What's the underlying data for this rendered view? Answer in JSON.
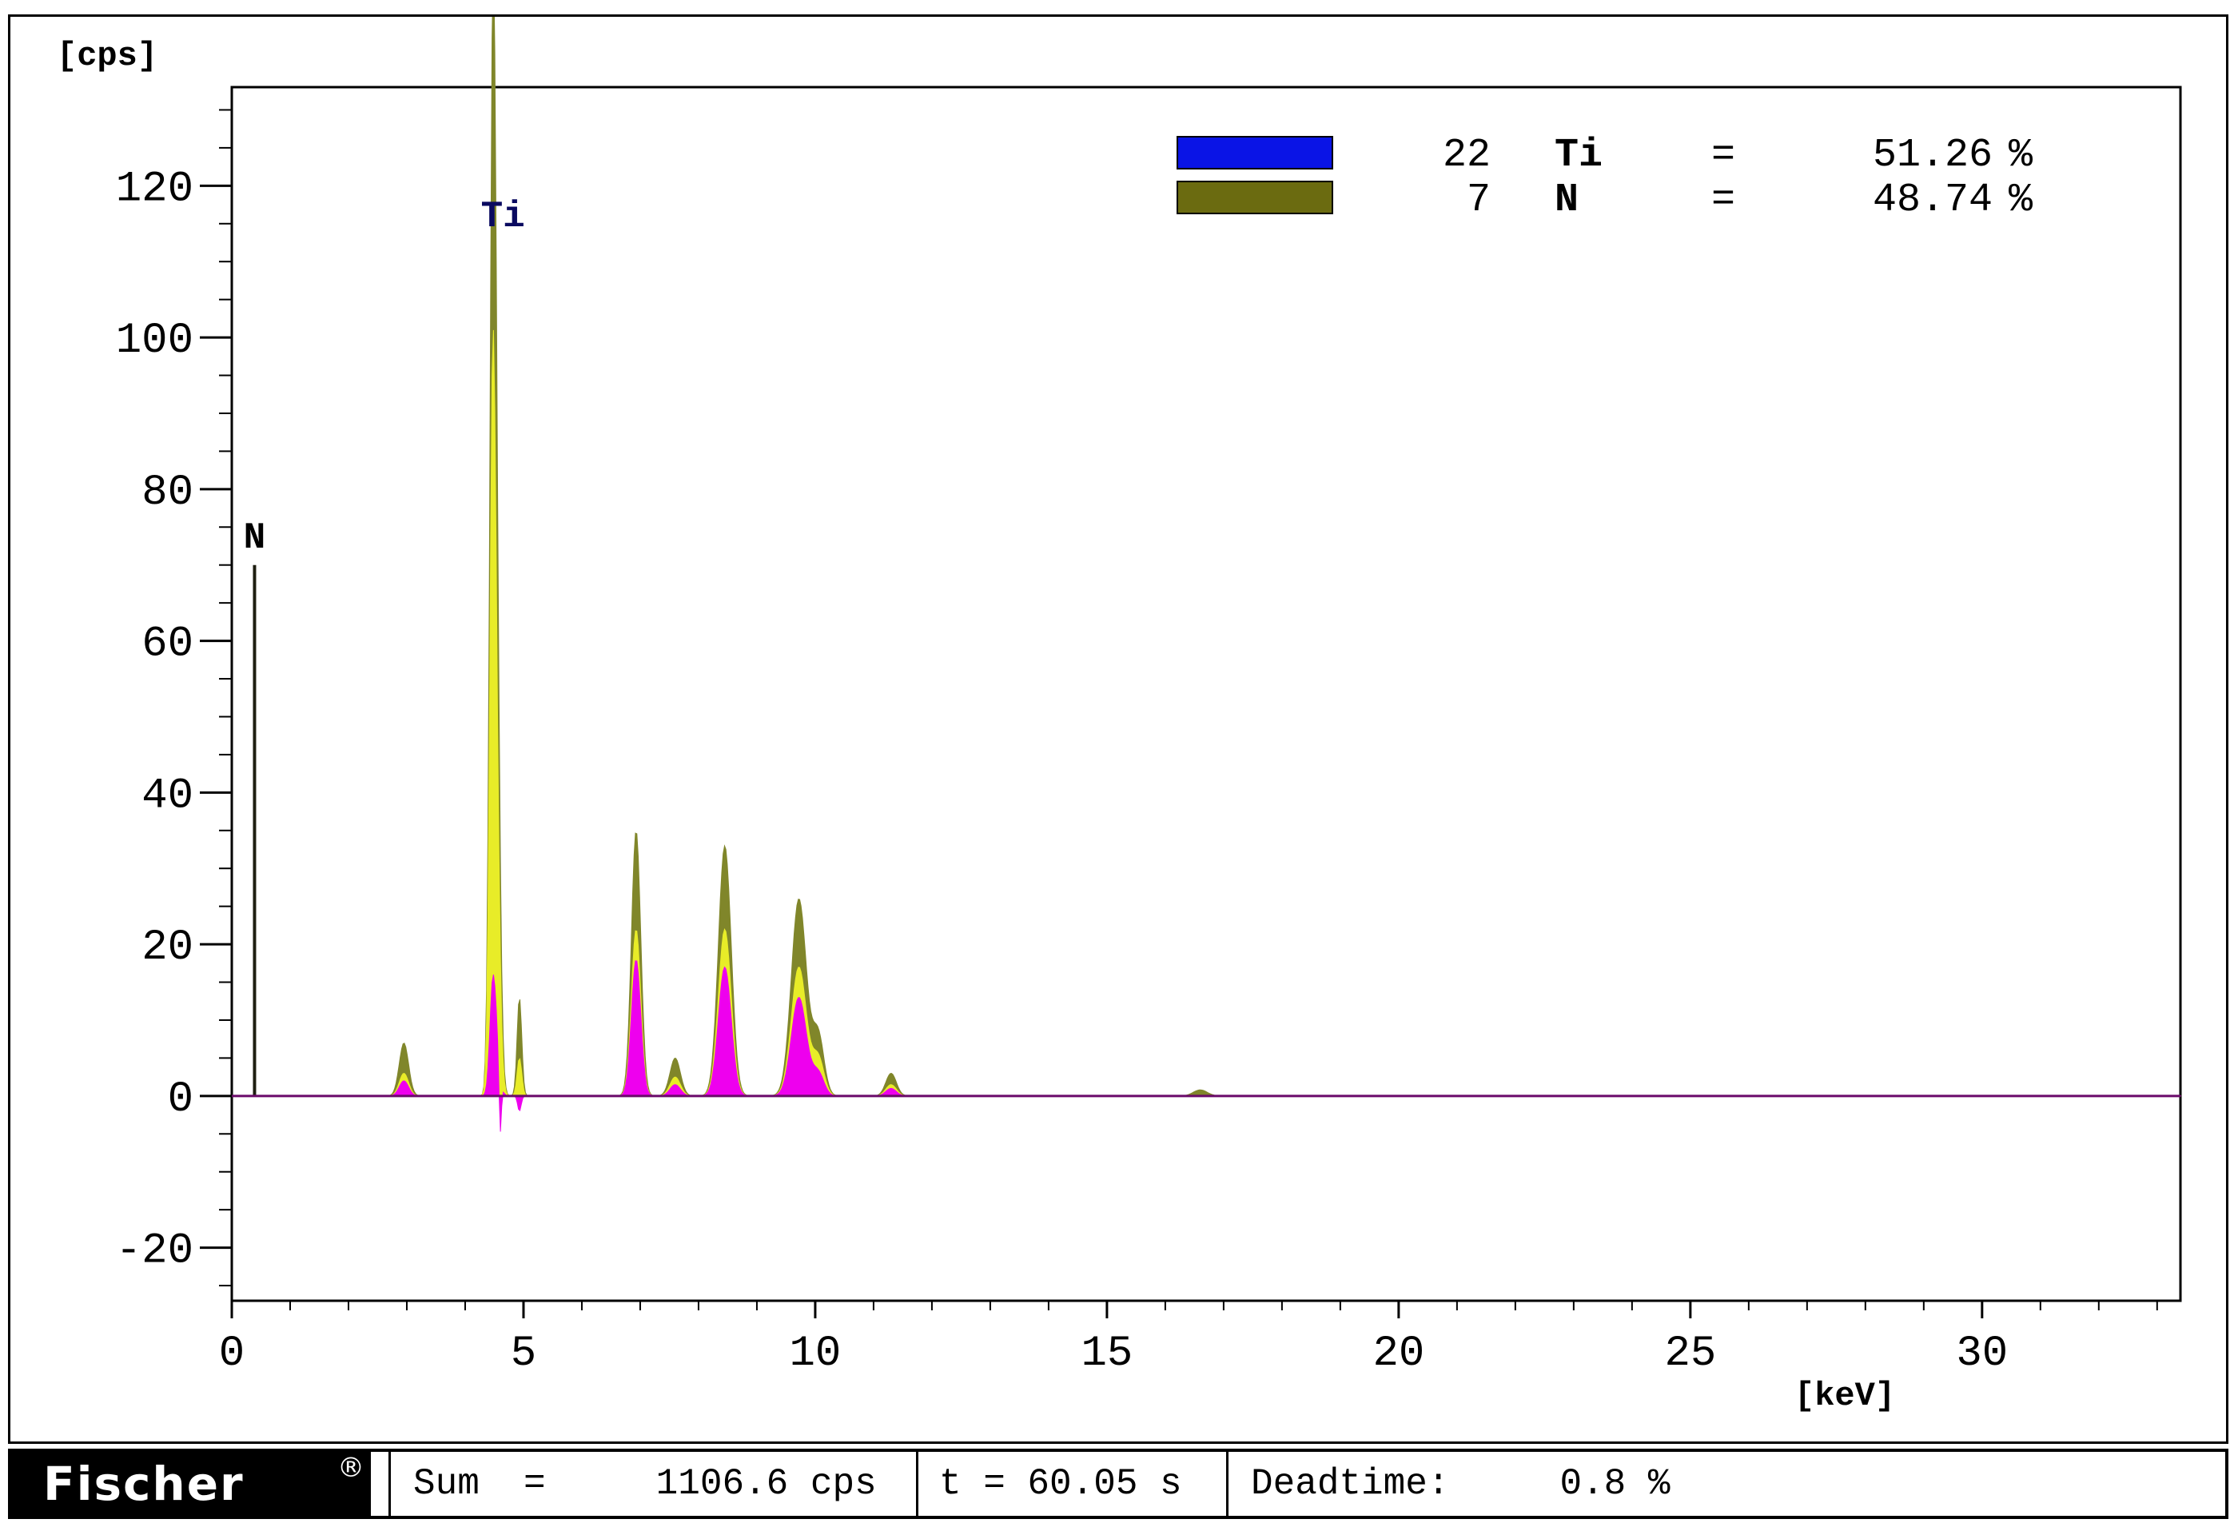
{
  "chart_data": {
    "type": "area",
    "ylabel": "[cps]",
    "xlabel": "[keV]",
    "xlim": [
      0,
      33.4
    ],
    "ylim": [
      -27,
      133
    ],
    "x_ticks": [
      "0",
      "5",
      "10",
      "15",
      "20",
      "25",
      "30"
    ],
    "y_ticks": [
      "-20",
      "0",
      "20",
      "40",
      "60",
      "80",
      "100",
      "120"
    ],
    "peak_labels": [
      {
        "text": "Ti",
        "x": 4.51
      },
      {
        "text": "N",
        "x": 0.39
      }
    ],
    "n_marker": {
      "x": 0.39,
      "value": 70
    },
    "legend": [
      {
        "z": "22",
        "symbol": "Ti",
        "eq": "=",
        "value": "51.26",
        "unit": "%",
        "color": "#0a14e6"
      },
      {
        "z": "7",
        "symbol": "N",
        "eq": "=",
        "value": "48.74",
        "unit": "%",
        "color": "#6b6b10"
      }
    ],
    "series": [
      {
        "role": "olive",
        "color": "#80862a",
        "peaks": [
          [
            2.95,
            7,
            0.08
          ],
          [
            4.47,
            110,
            0.05
          ],
          [
            4.53,
            60,
            0.06
          ],
          [
            4.93,
            13,
            0.04
          ],
          [
            6.93,
            35,
            0.08
          ],
          [
            7.6,
            5,
            0.09
          ],
          [
            8.45,
            33,
            0.11
          ],
          [
            9.72,
            26,
            0.13
          ],
          [
            10.05,
            8,
            0.1
          ],
          [
            11.3,
            3,
            0.09
          ],
          [
            16.6,
            0.8,
            0.12
          ]
        ]
      },
      {
        "role": "yellow",
        "color": "#e8ec28",
        "peaks": [
          [
            2.95,
            3,
            0.08
          ],
          [
            4.47,
            78,
            0.05
          ],
          [
            4.53,
            35,
            0.06
          ],
          [
            4.93,
            5,
            0.04
          ],
          [
            6.93,
            22,
            0.08
          ],
          [
            7.6,
            2.5,
            0.09
          ],
          [
            8.45,
            22,
            0.11
          ],
          [
            9.72,
            17,
            0.13
          ],
          [
            10.05,
            5,
            0.1
          ],
          [
            11.3,
            1.5,
            0.09
          ]
        ]
      },
      {
        "role": "magenta",
        "color": "#ee00ee",
        "peaks": [
          [
            2.95,
            2,
            0.08
          ],
          [
            4.47,
            12,
            0.05
          ],
          [
            4.53,
            6,
            0.06
          ],
          [
            4.6,
            -8,
            0.02
          ],
          [
            4.93,
            -2,
            0.03
          ],
          [
            6.93,
            18,
            0.08
          ],
          [
            7.6,
            1.5,
            0.09
          ],
          [
            8.45,
            17,
            0.11
          ],
          [
            9.72,
            13,
            0.13
          ],
          [
            10.05,
            3,
            0.1
          ],
          [
            11.3,
            1,
            0.09
          ]
        ]
      }
    ]
  },
  "status": {
    "logo": "Fischer",
    "sum_label": "Sum  =     1106.6 cps",
    "time_label": "t = 60.05 s",
    "deadtime_label": "Deadtime:     0.8 %"
  }
}
